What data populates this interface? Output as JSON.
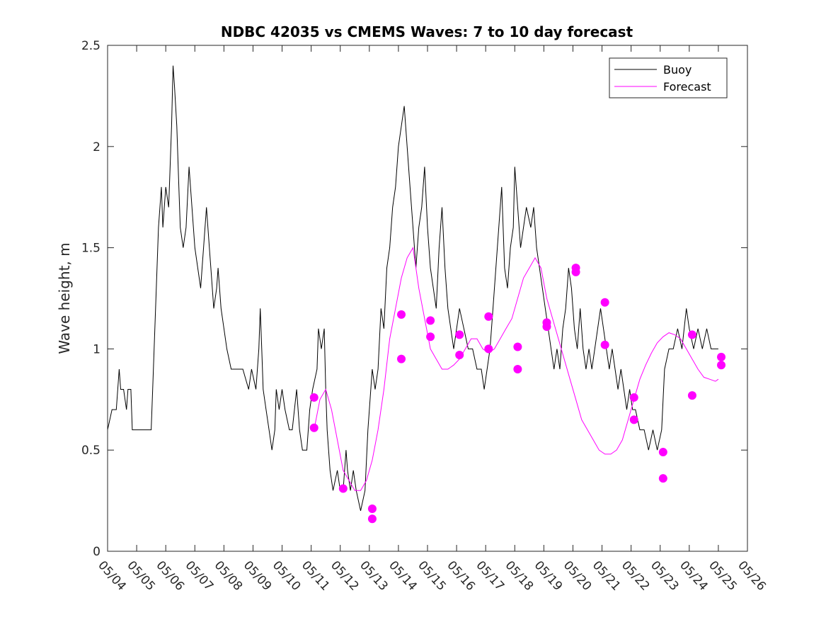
{
  "chart_data": {
    "type": "line",
    "title": "NDBC 42035 vs CMEMS Waves: 7 to 10 day forecast",
    "xlabel": "",
    "ylabel": "Wave height, m",
    "xlim": [
      "05/04",
      "05/26"
    ],
    "ylim": [
      0,
      2.5
    ],
    "x_tick_labels": [
      "05/04",
      "05/05",
      "05/06",
      "05/07",
      "05/08",
      "05/09",
      "05/10",
      "05/11",
      "05/12",
      "05/13",
      "05/14",
      "05/15",
      "05/16",
      "05/17",
      "05/18",
      "05/19",
      "05/20",
      "05/21",
      "05/22",
      "05/23",
      "05/24",
      "05/25",
      "05/26"
    ],
    "y_ticks": [
      0,
      0.5,
      1,
      1.5,
      2,
      2.5
    ],
    "y_tick_labels": [
      "0",
      "0.5",
      "1",
      "1.5",
      "2",
      "2.5"
    ],
    "grid": false,
    "legend": {
      "placement": "top-right",
      "entries": [
        "Buoy",
        "Forecast"
      ]
    },
    "colors": {
      "buoy": "#000000",
      "forecast": "#ff00ff"
    },
    "series": [
      {
        "name": "Buoy",
        "x_unit": "day offset from 05/04",
        "points": [
          [
            0.0,
            0.6
          ],
          [
            0.15,
            0.7
          ],
          [
            0.3,
            0.7
          ],
          [
            0.4,
            0.9
          ],
          [
            0.45,
            0.8
          ],
          [
            0.55,
            0.8
          ],
          [
            0.65,
            0.7
          ],
          [
            0.7,
            0.8
          ],
          [
            0.8,
            0.8
          ],
          [
            0.85,
            0.6
          ],
          [
            1.5,
            0.6
          ],
          [
            1.55,
            0.8
          ],
          [
            1.65,
            1.2
          ],
          [
            1.75,
            1.6
          ],
          [
            1.85,
            1.8
          ],
          [
            1.9,
            1.6
          ],
          [
            2.0,
            1.8
          ],
          [
            2.1,
            1.7
          ],
          [
            2.2,
            2.1
          ],
          [
            2.25,
            2.4
          ],
          [
            2.3,
            2.3
          ],
          [
            2.38,
            2.1
          ],
          [
            2.45,
            1.8
          ],
          [
            2.5,
            1.6
          ],
          [
            2.6,
            1.5
          ],
          [
            2.7,
            1.6
          ],
          [
            2.8,
            1.9
          ],
          [
            2.9,
            1.7
          ],
          [
            3.0,
            1.5
          ],
          [
            3.1,
            1.4
          ],
          [
            3.2,
            1.3
          ],
          [
            3.25,
            1.4
          ],
          [
            3.3,
            1.5
          ],
          [
            3.4,
            1.7
          ],
          [
            3.5,
            1.5
          ],
          [
            3.55,
            1.4
          ],
          [
            3.65,
            1.2
          ],
          [
            3.75,
            1.3
          ],
          [
            3.8,
            1.4
          ],
          [
            3.9,
            1.2
          ],
          [
            4.0,
            1.1
          ],
          [
            4.1,
            1.0
          ],
          [
            4.25,
            0.9
          ],
          [
            4.45,
            0.9
          ],
          [
            4.65,
            0.9
          ],
          [
            4.85,
            0.8
          ],
          [
            4.95,
            0.9
          ],
          [
            5.1,
            0.8
          ],
          [
            5.2,
            1.0
          ],
          [
            5.25,
            1.2
          ],
          [
            5.3,
            1.0
          ],
          [
            5.35,
            0.8
          ],
          [
            5.45,
            0.7
          ],
          [
            5.55,
            0.6
          ],
          [
            5.65,
            0.5
          ],
          [
            5.75,
            0.6
          ],
          [
            5.8,
            0.8
          ],
          [
            5.9,
            0.7
          ],
          [
            6.0,
            0.8
          ],
          [
            6.1,
            0.7
          ],
          [
            6.25,
            0.6
          ],
          [
            6.35,
            0.6
          ],
          [
            6.5,
            0.8
          ],
          [
            6.6,
            0.6
          ],
          [
            6.7,
            0.5
          ],
          [
            6.85,
            0.5
          ],
          [
            6.95,
            0.7
          ],
          [
            7.05,
            0.8
          ],
          [
            7.2,
            0.9
          ],
          [
            7.25,
            1.1
          ],
          [
            7.35,
            1.0
          ],
          [
            7.45,
            1.1
          ],
          [
            7.5,
            0.8
          ],
          [
            7.55,
            0.6
          ],
          [
            7.65,
            0.4
          ],
          [
            7.75,
            0.3
          ],
          [
            7.9,
            0.4
          ],
          [
            8.0,
            0.3
          ],
          [
            8.1,
            0.3
          ],
          [
            8.2,
            0.5
          ],
          [
            8.25,
            0.4
          ],
          [
            8.35,
            0.3
          ],
          [
            8.45,
            0.4
          ],
          [
            8.55,
            0.3
          ],
          [
            8.7,
            0.2
          ],
          [
            8.85,
            0.3
          ],
          [
            8.95,
            0.6
          ],
          [
            9.1,
            0.9
          ],
          [
            9.2,
            0.8
          ],
          [
            9.3,
            0.9
          ],
          [
            9.4,
            1.2
          ],
          [
            9.5,
            1.1
          ],
          [
            9.6,
            1.4
          ],
          [
            9.7,
            1.5
          ],
          [
            9.8,
            1.7
          ],
          [
            9.9,
            1.8
          ],
          [
            10.0,
            2.0
          ],
          [
            10.1,
            2.1
          ],
          [
            10.2,
            2.2
          ],
          [
            10.3,
            2.0
          ],
          [
            10.4,
            1.8
          ],
          [
            10.5,
            1.6
          ],
          [
            10.6,
            1.4
          ],
          [
            10.7,
            1.6
          ],
          [
            10.8,
            1.7
          ],
          [
            10.9,
            1.9
          ],
          [
            11.0,
            1.6
          ],
          [
            11.1,
            1.4
          ],
          [
            11.2,
            1.3
          ],
          [
            11.3,
            1.2
          ],
          [
            11.4,
            1.5
          ],
          [
            11.5,
            1.7
          ],
          [
            11.6,
            1.4
          ],
          [
            11.7,
            1.2
          ],
          [
            11.8,
            1.1
          ],
          [
            11.9,
            1.0
          ],
          [
            12.0,
            1.1
          ],
          [
            12.1,
            1.2
          ],
          [
            12.25,
            1.1
          ],
          [
            12.4,
            1.0
          ],
          [
            12.55,
            1.0
          ],
          [
            12.7,
            0.9
          ],
          [
            12.85,
            0.9
          ],
          [
            12.95,
            0.8
          ],
          [
            13.05,
            0.9
          ],
          [
            13.15,
            1.0
          ],
          [
            13.25,
            1.2
          ],
          [
            13.35,
            1.4
          ],
          [
            13.45,
            1.6
          ],
          [
            13.55,
            1.8
          ],
          [
            13.65,
            1.4
          ],
          [
            13.75,
            1.3
          ],
          [
            13.85,
            1.5
          ],
          [
            13.95,
            1.6
          ],
          [
            14.0,
            1.9
          ],
          [
            14.1,
            1.7
          ],
          [
            14.2,
            1.5
          ],
          [
            14.3,
            1.6
          ],
          [
            14.4,
            1.7
          ],
          [
            14.55,
            1.6
          ],
          [
            14.65,
            1.7
          ],
          [
            14.75,
            1.5
          ],
          [
            14.85,
            1.4
          ],
          [
            14.95,
            1.3
          ],
          [
            15.05,
            1.2
          ],
          [
            15.15,
            1.1
          ],
          [
            15.25,
            1.0
          ],
          [
            15.35,
            0.9
          ],
          [
            15.45,
            1.0
          ],
          [
            15.55,
            0.9
          ],
          [
            15.65,
            1.1
          ],
          [
            15.75,
            1.2
          ],
          [
            15.85,
            1.4
          ],
          [
            15.95,
            1.3
          ],
          [
            16.05,
            1.1
          ],
          [
            16.15,
            1.0
          ],
          [
            16.25,
            1.2
          ],
          [
            16.35,
            1.0
          ],
          [
            16.45,
            0.9
          ],
          [
            16.55,
            1.0
          ],
          [
            16.65,
            0.9
          ],
          [
            16.75,
            1.0
          ],
          [
            16.85,
            1.1
          ],
          [
            16.95,
            1.2
          ],
          [
            17.05,
            1.1
          ],
          [
            17.15,
            1.0
          ],
          [
            17.25,
            0.9
          ],
          [
            17.35,
            1.0
          ],
          [
            17.45,
            0.9
          ],
          [
            17.55,
            0.8
          ],
          [
            17.65,
            0.9
          ],
          [
            17.75,
            0.8
          ],
          [
            17.85,
            0.7
          ],
          [
            17.95,
            0.8
          ],
          [
            18.05,
            0.7
          ],
          [
            18.15,
            0.7
          ],
          [
            18.3,
            0.6
          ],
          [
            18.45,
            0.6
          ],
          [
            18.6,
            0.5
          ],
          [
            18.75,
            0.6
          ],
          [
            18.9,
            0.5
          ],
          [
            19.05,
            0.6
          ],
          [
            19.15,
            0.9
          ],
          [
            19.3,
            1.0
          ],
          [
            19.45,
            1.0
          ],
          [
            19.6,
            1.1
          ],
          [
            19.75,
            1.0
          ],
          [
            19.9,
            1.2
          ],
          [
            20.0,
            1.1
          ],
          [
            20.15,
            1.0
          ],
          [
            20.3,
            1.1
          ],
          [
            20.45,
            1.0
          ],
          [
            20.6,
            1.1
          ],
          [
            20.75,
            1.0
          ],
          [
            20.9,
            1.0
          ],
          [
            21.0,
            1.0
          ]
        ]
      },
      {
        "name": "Forecast",
        "x_unit": "day offset from 05/04",
        "points": [
          [
            7.1,
            0.6
          ],
          [
            7.3,
            0.75
          ],
          [
            7.5,
            0.8
          ],
          [
            7.7,
            0.7
          ],
          [
            7.9,
            0.55
          ],
          [
            8.1,
            0.4
          ],
          [
            8.3,
            0.35
          ],
          [
            8.5,
            0.3
          ],
          [
            8.7,
            0.3
          ],
          [
            8.9,
            0.35
          ],
          [
            9.1,
            0.45
          ],
          [
            9.3,
            0.6
          ],
          [
            9.5,
            0.8
          ],
          [
            9.7,
            1.05
          ],
          [
            9.9,
            1.2
          ],
          [
            10.1,
            1.35
          ],
          [
            10.3,
            1.45
          ],
          [
            10.5,
            1.5
          ],
          [
            10.7,
            1.3
          ],
          [
            10.9,
            1.15
          ],
          [
            11.1,
            1.0
          ],
          [
            11.3,
            0.95
          ],
          [
            11.5,
            0.9
          ],
          [
            11.7,
            0.9
          ],
          [
            11.9,
            0.92
          ],
          [
            12.1,
            0.95
          ],
          [
            12.3,
            1.0
          ],
          [
            12.5,
            1.05
          ],
          [
            12.7,
            1.05
          ],
          [
            12.9,
            1.0
          ],
          [
            13.1,
            0.98
          ],
          [
            13.3,
            1.0
          ],
          [
            13.5,
            1.05
          ],
          [
            13.7,
            1.1
          ],
          [
            13.9,
            1.15
          ],
          [
            14.1,
            1.25
          ],
          [
            14.3,
            1.35
          ],
          [
            14.5,
            1.4
          ],
          [
            14.7,
            1.45
          ],
          [
            14.9,
            1.4
          ],
          [
            15.1,
            1.25
          ],
          [
            15.3,
            1.15
          ],
          [
            15.5,
            1.05
          ],
          [
            15.7,
            0.95
          ],
          [
            15.9,
            0.85
          ],
          [
            16.1,
            0.75
          ],
          [
            16.3,
            0.65
          ],
          [
            16.5,
            0.6
          ],
          [
            16.7,
            0.55
          ],
          [
            16.9,
            0.5
          ],
          [
            17.1,
            0.48
          ],
          [
            17.3,
            0.48
          ],
          [
            17.5,
            0.5
          ],
          [
            17.7,
            0.55
          ],
          [
            17.9,
            0.65
          ],
          [
            18.1,
            0.75
          ],
          [
            18.3,
            0.85
          ],
          [
            18.5,
            0.92
          ],
          [
            18.7,
            0.98
          ],
          [
            18.9,
            1.03
          ],
          [
            19.1,
            1.06
          ],
          [
            19.3,
            1.08
          ],
          [
            19.5,
            1.07
          ],
          [
            19.7,
            1.05
          ],
          [
            19.9,
            1.0
          ],
          [
            20.1,
            0.95
          ],
          [
            20.3,
            0.9
          ],
          [
            20.5,
            0.86
          ],
          [
            20.7,
            0.85
          ],
          [
            20.9,
            0.84
          ],
          [
            21.0,
            0.85
          ]
        ]
      }
    ],
    "forecast_markers": [
      [
        7.1,
        0.76
      ],
      [
        7.1,
        0.61
      ],
      [
        8.1,
        0.31
      ],
      [
        9.1,
        0.21
      ],
      [
        9.1,
        0.16
      ],
      [
        10.1,
        1.17
      ],
      [
        10.1,
        0.95
      ],
      [
        11.1,
        1.14
      ],
      [
        11.1,
        1.06
      ],
      [
        12.1,
        1.07
      ],
      [
        12.1,
        0.97
      ],
      [
        13.1,
        1.16
      ],
      [
        13.1,
        1.0
      ],
      [
        14.1,
        1.01
      ],
      [
        14.1,
        0.9
      ],
      [
        15.1,
        1.13
      ],
      [
        15.1,
        1.11
      ],
      [
        16.1,
        1.4
      ],
      [
        16.1,
        1.38
      ],
      [
        17.1,
        1.23
      ],
      [
        17.1,
        1.02
      ],
      [
        18.1,
        0.76
      ],
      [
        18.1,
        0.65
      ],
      [
        19.1,
        0.49
      ],
      [
        19.1,
        0.36
      ],
      [
        20.1,
        1.07
      ],
      [
        20.1,
        0.77
      ],
      [
        21.1,
        0.96
      ],
      [
        21.1,
        0.92
      ]
    ]
  }
}
